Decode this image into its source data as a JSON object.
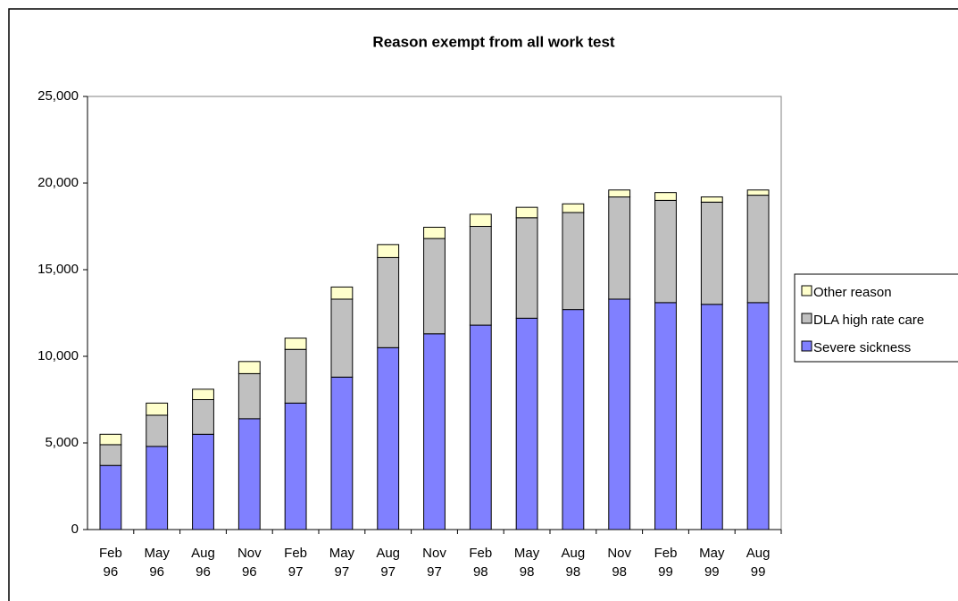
{
  "chart_data": {
    "type": "stacked-bar",
    "title": "Reason exempt from all work test",
    "categories": [
      "Feb 96",
      "May 96",
      "Aug 96",
      "Nov 96",
      "Feb 97",
      "May 97",
      "Aug 97",
      "Nov 97",
      "Feb 98",
      "May 98",
      "Aug 98",
      "Nov 98",
      "Feb 99",
      "May 99",
      "Aug 99"
    ],
    "series": [
      {
        "name": "Severe sickness",
        "color": "#8080ff",
        "values": [
          3700,
          4800,
          5500,
          6400,
          7300,
          8800,
          10500,
          11300,
          11800,
          12200,
          12700,
          13300,
          13100,
          13000,
          13100
        ]
      },
      {
        "name": "DLA high rate care",
        "color": "#c0c0c0",
        "values": [
          1200,
          1800,
          2000,
          2600,
          3100,
          4500,
          5200,
          5500,
          5700,
          5800,
          5600,
          5900,
          5900,
          5900,
          6200
        ]
      },
      {
        "name": "Other reason",
        "color": "#ffffcc",
        "values": [
          600,
          700,
          600,
          700,
          650,
          700,
          750,
          650,
          700,
          600,
          500,
          400,
          450,
          300,
          300
        ]
      }
    ],
    "ylim": [
      0,
      25000
    ],
    "yticks": [
      0,
      {
        "value": 5000,
        "label": "5,000"
      },
      {
        "value": 10000,
        "label": "10,000"
      },
      {
        "value": 15000,
        "label": "15,000"
      },
      {
        "value": 20000,
        "label": "20,000"
      },
      {
        "value": 25000,
        "label": "25,000"
      }
    ],
    "legend": "right"
  }
}
